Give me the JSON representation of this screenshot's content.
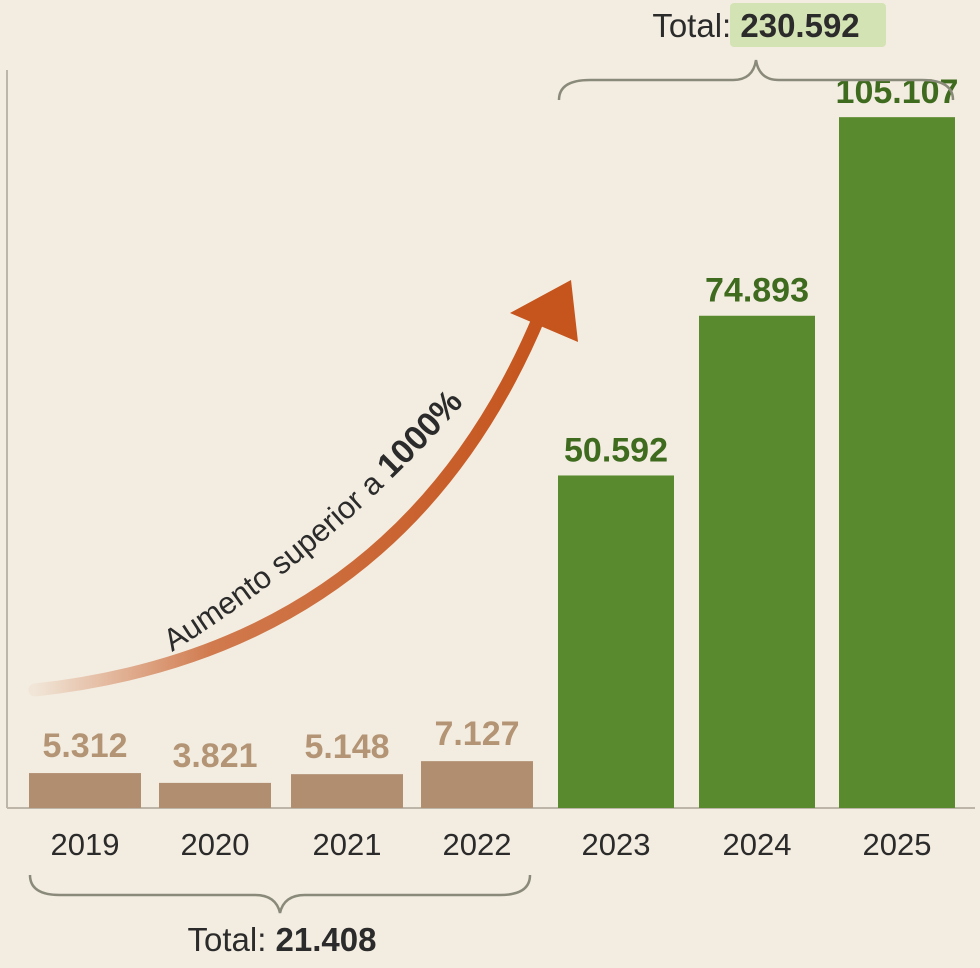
{
  "chart_data": {
    "type": "bar",
    "categories": [
      "2019",
      "2020",
      "2021",
      "2022",
      "2023",
      "2024",
      "2025"
    ],
    "values": [
      5312,
      3821,
      5148,
      7127,
      50592,
      74893,
      105107
    ],
    "value_labels": [
      "5.312",
      "3.821",
      "5.148",
      "7.127",
      "50.592",
      "74.893",
      "105.107"
    ],
    "ylim": [
      0,
      110000
    ],
    "grid": false,
    "groups": [
      {
        "categories": [
          "2019",
          "2020",
          "2021",
          "2022"
        ],
        "total_prefix": "Total: ",
        "total_value": "21.408",
        "color": "#b08e6f",
        "label_color": "#b39474"
      },
      {
        "categories": [
          "2023",
          "2024",
          "2025"
        ],
        "total_prefix": "Total: ",
        "total_value": "230.592",
        "color": "#5a8a2e",
        "label_color": "#3f6b1f",
        "total_highlight": "#d3e3b4"
      }
    ],
    "annotation": {
      "text_prefix": "Aumento superior a ",
      "text_bold": "1000%",
      "arrow_color": "#c5541d"
    }
  },
  "colors": {
    "background": "#f3ede1",
    "axis": "#bdb5a8",
    "brace": "#8a8a7a"
  }
}
